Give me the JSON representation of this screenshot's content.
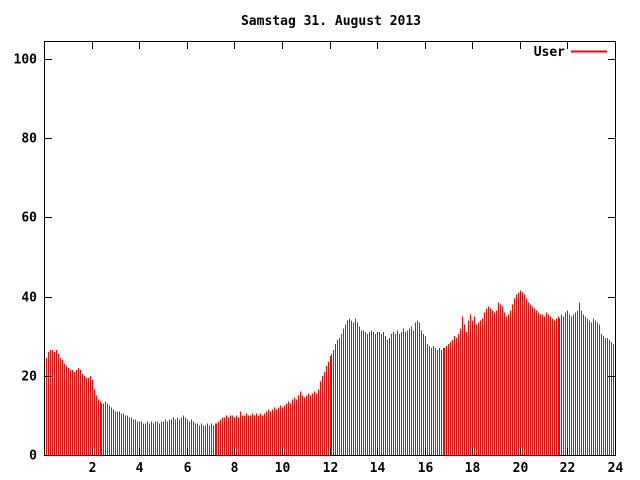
{
  "title": "Samstag 31. August 2013",
  "legend": {
    "label": "User"
  },
  "colors": {
    "series": "#ff0000",
    "axis": "#000000",
    "background": "#ffffff",
    "text": "#000000"
  },
  "axes": {
    "x_ticks": [
      2,
      4,
      6,
      8,
      10,
      12,
      14,
      16,
      18,
      20,
      22,
      24
    ],
    "y_ticks": [
      0,
      20,
      40,
      60,
      80,
      100
    ],
    "x_range_hours": [
      0,
      24
    ],
    "y_range": [
      0,
      104.5
    ],
    "grid": false
  },
  "chart_data": {
    "type": "bar",
    "style": "impulses",
    "title": "Samstag 31. August 2013",
    "xlabel": "",
    "ylabel": "",
    "legend_position": "top-right-inside",
    "x_unit": "hour of day",
    "interval_minutes": 5,
    "x_start_hour": 0,
    "x_end_hour": 24,
    "ylim": [
      0,
      104.5
    ],
    "series": [
      {
        "name": "User",
        "color": "#ff0000",
        "values": [
          24.5,
          26,
          26.5,
          26.5,
          26,
          26.5,
          25.5,
          24.5,
          24,
          23,
          22.5,
          22,
          21.5,
          21.5,
          21,
          21.5,
          22,
          21.5,
          20.5,
          20,
          19.5,
          19.5,
          20,
          19,
          16.5,
          15,
          14,
          13.5,
          13,
          13,
          13.5,
          13,
          12.5,
          12,
          11.5,
          11,
          11,
          11,
          10.5,
          10.5,
          10,
          10,
          9.5,
          9.5,
          9,
          9,
          8.5,
          8.5,
          8.5,
          8,
          8,
          8.5,
          8,
          8.5,
          8,
          8.5,
          8.5,
          8,
          8.5,
          8.5,
          9,
          8.5,
          9,
          9,
          9.5,
          9,
          9.5,
          9,
          9.5,
          10,
          9.5,
          9,
          8.5,
          9,
          8.5,
          8,
          8,
          7.5,
          8,
          7.5,
          7.5,
          8,
          7.5,
          8,
          7.5,
          8,
          8,
          8.5,
          9,
          9.5,
          9.5,
          10,
          9.5,
          10,
          10,
          9.5,
          10,
          9.5,
          11,
          10,
          10,
          10.5,
          10,
          10,
          10.5,
          10,
          10.5,
          10,
          10.5,
          10,
          10.5,
          11,
          11.5,
          11,
          11.5,
          12,
          11.5,
          12,
          12.5,
          12,
          12.5,
          13,
          13.5,
          13,
          14,
          14.5,
          14,
          15,
          16,
          15,
          14.5,
          15,
          15.5,
          15,
          15.5,
          16,
          15.5,
          16.5,
          18.5,
          20,
          21,
          22.5,
          23.5,
          25,
          25.5,
          26.5,
          28,
          29,
          29.5,
          30.5,
          32,
          33,
          34,
          34.5,
          34,
          33.5,
          34.5,
          33.5,
          32.5,
          31.5,
          31.5,
          31,
          30.5,
          31,
          31.5,
          31,
          30.5,
          31,
          31,
          30.5,
          31,
          30,
          29,
          29.5,
          30.5,
          31,
          30.5,
          31.5,
          30.5,
          31,
          32,
          31,
          31.5,
          32,
          32.5,
          31.5,
          33.5,
          34,
          33.5,
          31.5,
          30.5,
          30,
          28,
          27.5,
          27,
          27.5,
          27,
          26.5,
          27,
          26.5,
          27,
          27,
          27.5,
          28,
          28.5,
          29,
          30,
          29.5,
          30.5,
          32,
          35,
          33,
          31,
          34,
          35.5,
          34,
          35,
          33,
          33.5,
          34,
          34.5,
          36,
          37,
          37.5,
          37,
          36.5,
          36,
          36.5,
          38.5,
          38,
          37.5,
          36,
          35,
          35.5,
          36.5,
          38,
          39.5,
          40.5,
          41,
          41.5,
          41,
          40.5,
          39.5,
          38.5,
          38,
          37.5,
          37,
          36.5,
          36,
          35.5,
          35.5,
          35,
          36,
          35.5,
          35,
          34.5,
          34,
          34.5,
          35,
          34.5,
          35.5,
          35,
          36,
          36.5,
          35.5,
          35,
          35.5,
          36,
          36.5,
          38.5,
          36.5,
          35.5,
          35,
          34.5,
          34,
          33.5,
          34.5,
          34,
          33.5,
          33,
          30.5,
          30,
          29.5,
          29.5,
          29,
          28.5,
          28,
          27.5
        ]
      }
    ]
  }
}
